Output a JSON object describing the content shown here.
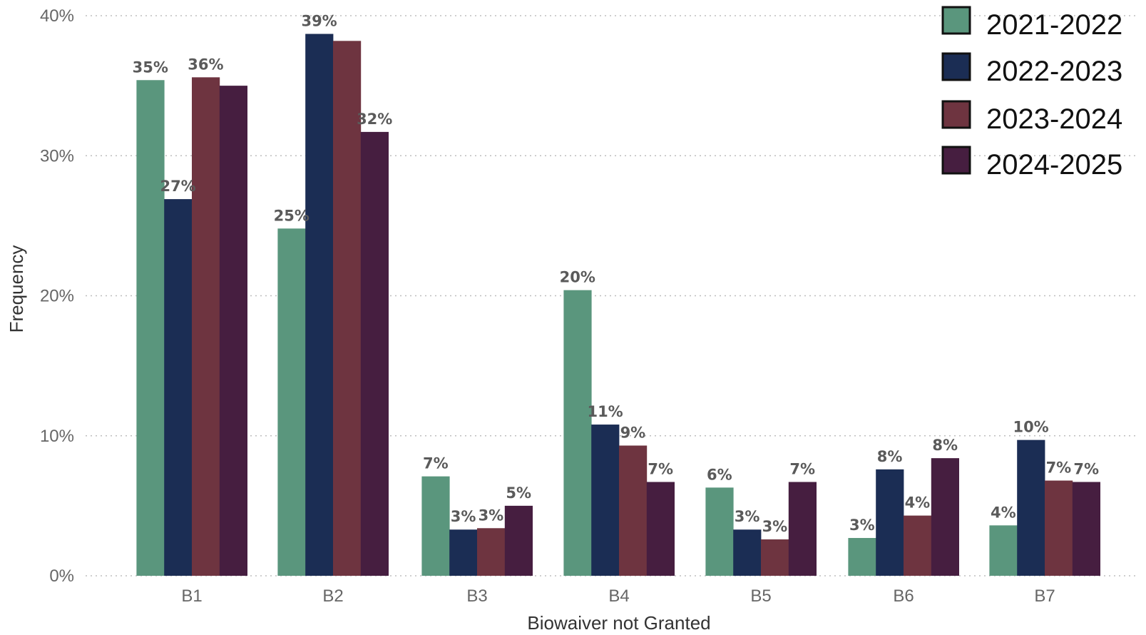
{
  "chart_data": {
    "type": "bar",
    "title": "",
    "xlabel": "Biowaiver not Granted",
    "ylabel": "Frequency",
    "categories": [
      "B1",
      "B2",
      "B3",
      "B4",
      "B5",
      "B6",
      "B7"
    ],
    "ylim": [
      0,
      40
    ],
    "yticks": [
      0,
      10,
      20,
      30,
      40
    ],
    "ytick_labels": [
      "0%",
      "10%",
      "20%",
      "30%",
      "40%"
    ],
    "grid": true,
    "legend_position": "top-right",
    "series": [
      {
        "name": "2021-2022",
        "color": "#5a967d",
        "values": [
          35.4,
          24.8,
          7.1,
          20.4,
          6.3,
          2.7,
          3.6
        ],
        "labels": [
          "35%",
          "25%",
          "7%",
          "20%",
          "6%",
          "3%",
          "4%"
        ]
      },
      {
        "name": "2022-2023",
        "color": "#1b2d54",
        "values": [
          26.9,
          38.7,
          3.3,
          10.8,
          3.3,
          7.6,
          9.7
        ],
        "labels": [
          "27%",
          "39%",
          "3%",
          "11%",
          "3%",
          "8%",
          "10%"
        ]
      },
      {
        "name": "2023-2024",
        "color": "#6e3440",
        "values": [
          35.6,
          38.2,
          3.4,
          9.3,
          2.6,
          4.3,
          6.8
        ],
        "labels": [
          "36%",
          "38%",
          "3%",
          "9%",
          "3%",
          "4%",
          "7%"
        ]
      },
      {
        "name": "2024-2025",
        "color": "#461e40",
        "values": [
          35.0,
          31.7,
          5.0,
          6.7,
          6.7,
          8.4,
          6.7
        ],
        "labels": [
          "35%",
          "32%",
          "5%",
          "7%",
          "7%",
          "8%",
          "7%"
        ]
      }
    ],
    "label_visibility": [
      [
        true,
        true,
        true,
        true,
        true,
        true,
        true
      ],
      [
        true,
        true,
        true,
        true,
        true,
        true,
        true
      ],
      [
        true,
        false,
        true,
        true,
        true,
        true,
        true
      ],
      [
        false,
        true,
        true,
        true,
        true,
        true,
        true
      ]
    ]
  }
}
